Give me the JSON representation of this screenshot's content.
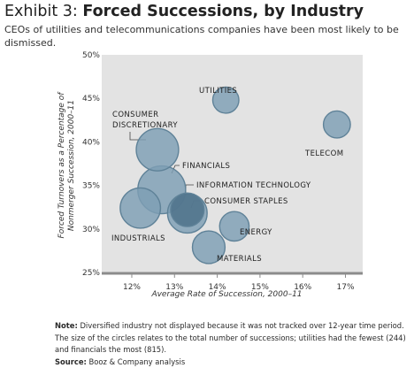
{
  "header": {
    "title_lead": "Exhibit 3: ",
    "title_main": "Forced Successions, by Industry",
    "subtitle": "CEOs of utilities and telecommunications companies have been most likely to be dismissed."
  },
  "chart_data": {
    "type": "scatter",
    "xlabel": "Average Rate of Succession, 2000–11",
    "ylabel": [
      "Forced Turnovers as a Percentage of",
      "Nonmerger Succession, 2000–11"
    ],
    "xlim": [
      11.4,
      17.3
    ],
    "ylim": [
      25,
      50
    ],
    "x_ticks": [
      "12%",
      "13%",
      "14%",
      "15%",
      "16%",
      "17%"
    ],
    "y_ticks": [
      "50%",
      "45%",
      "40%",
      "35%",
      "30%",
      "25%"
    ],
    "size_note": "bubble size = total number of successions",
    "points": [
      {
        "label": "UTILITIES",
        "x": 14.2,
        "y": 44.8,
        "successions": 244
      },
      {
        "label": "TELECOM",
        "x": 16.8,
        "y": 42.0,
        "successions": 260
      },
      {
        "label": "CONSUMER DISCRETIONARY",
        "x": 12.6,
        "y": 39.1,
        "successions": 640
      },
      {
        "label": "FINANCIALS",
        "x": 12.7,
        "y": 34.5,
        "successions": 815
      },
      {
        "label": "INDUSTRIALS",
        "x": 12.2,
        "y": 32.4,
        "successions": 580
      },
      {
        "label": "INFORMATION TECHNOLOGY",
        "x": 13.3,
        "y": 31.8,
        "successions": 560
      },
      {
        "label": "CONSUMER STAPLES",
        "x": 13.3,
        "y": 32.2,
        "successions": 400
      },
      {
        "label": "ENERGY",
        "x": 14.4,
        "y": 30.3,
        "successions": 310
      },
      {
        "label": "MATERIALS",
        "x": 13.8,
        "y": 27.9,
        "successions": 380
      }
    ],
    "colors": {
      "panel": "#e3e3e3",
      "bubble": "#7e9fb4",
      "bubble_dark": "#4e7189",
      "bubble_stroke": "#5f8298",
      "axis": "#8c8c8c"
    }
  },
  "footer": {
    "note_label": "Note:",
    "note_text": "Diversified industry not displayed because it was not tracked over 12-year time period. The size of the circles relates to the total number of successions; utilities had the fewest (244) and financials the most (815).",
    "source_label": "Source:",
    "source_text": "Booz & Company analysis"
  }
}
